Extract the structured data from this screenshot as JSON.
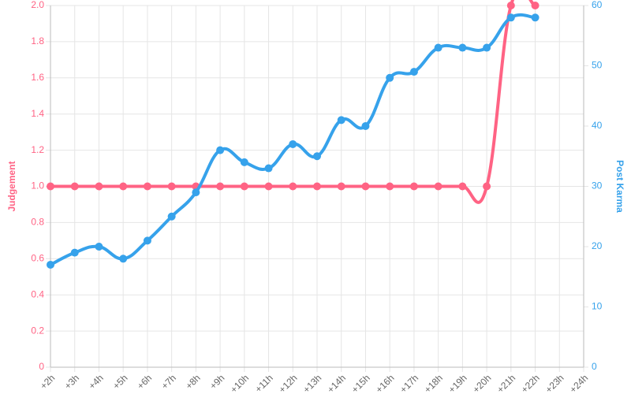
{
  "chart_data": {
    "type": "line",
    "categories": [
      "+2h",
      "+3h",
      "+4h",
      "+5h",
      "+6h",
      "+7h",
      "+8h",
      "+9h",
      "+10h",
      "+11h",
      "+12h",
      "+13h",
      "+14h",
      "+15h",
      "+16h",
      "+17h",
      "+18h",
      "+19h",
      "+20h",
      "+21h",
      "+22h",
      "+23h",
      "+24h"
    ],
    "series": [
      {
        "name": "Judgement",
        "color": "#ff6384",
        "axis": "y",
        "values": [
          1,
          1,
          1,
          1,
          1,
          1,
          1,
          1,
          1,
          1,
          1,
          1,
          1,
          1,
          1,
          1,
          1,
          1,
          1,
          2,
          2,
          null,
          null
        ]
      },
      {
        "name": "Post Karma",
        "color": "#36a2eb",
        "axis": "y2",
        "values": [
          17,
          19,
          20,
          18,
          21,
          25,
          29,
          36,
          34,
          33,
          37,
          35,
          41,
          40,
          48,
          49,
          53,
          53,
          53,
          58,
          58,
          null,
          null
        ]
      }
    ],
    "ylim": [
      0,
      2
    ],
    "yticks": [
      0,
      0.2,
      0.4,
      0.6,
      0.8,
      {
        "value": 1,
        "label": "1.0"
      },
      1.2,
      1.4,
      1.6,
      1.8,
      {
        "value": 2,
        "label": "2.0"
      }
    ],
    "y2lim": [
      0,
      60
    ],
    "y2ticks": [
      0,
      10,
      20,
      30,
      40,
      50,
      60
    ],
    "grid": true
  }
}
